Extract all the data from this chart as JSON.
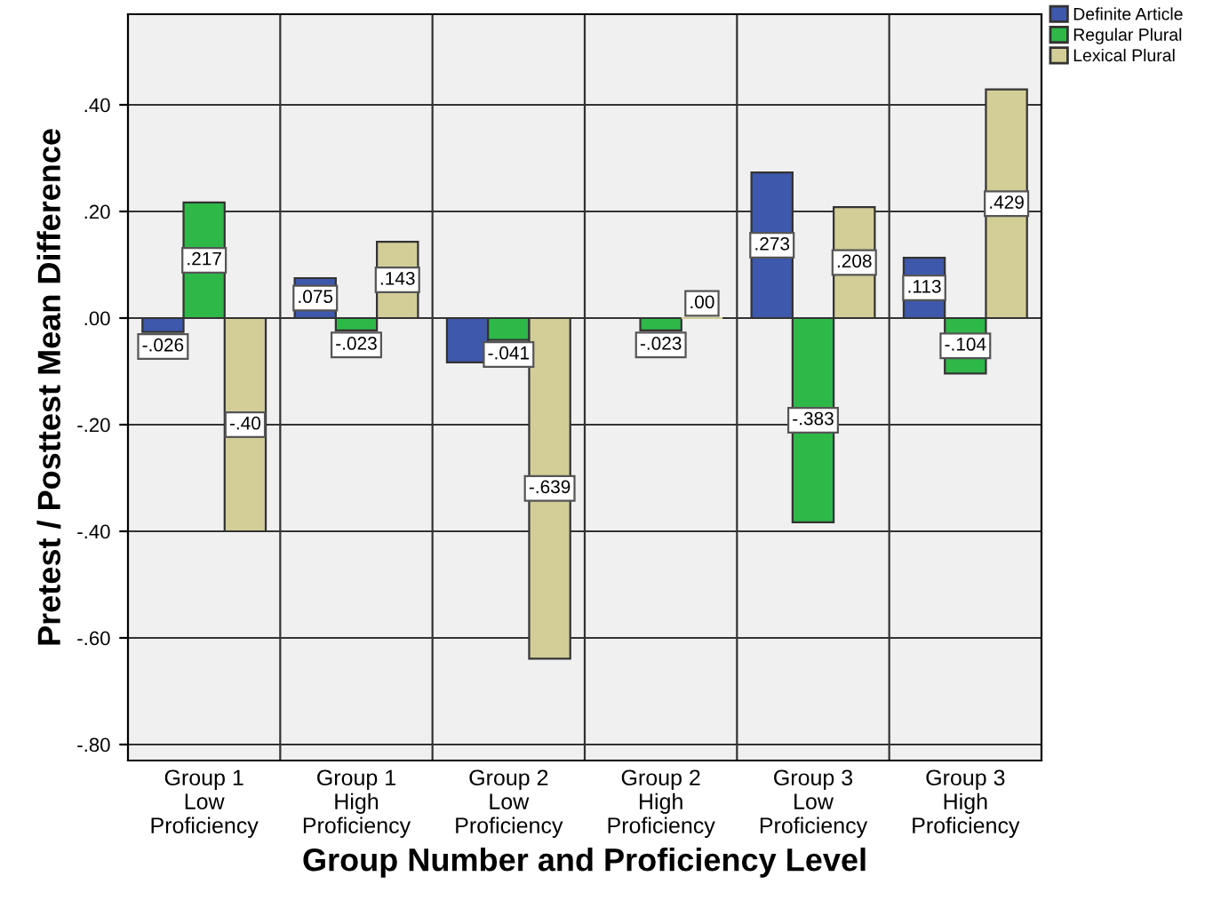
{
  "chart_data": {
    "type": "bar",
    "xlabel": "Group Number and Proficiency Level",
    "ylabel": "Pretest / Posttest Mean Difference",
    "categories": [
      "Group 1\nLow\nProficiency",
      "Group 1\nHigh\nProficiency",
      "Group 2\nLow\nProficiency",
      "Group 2\nHigh\nProficiency",
      "Group 3\nLow\nProficiency",
      "Group 3\nHigh\nProficiency"
    ],
    "series": [
      {
        "name": "Definite Article",
        "color": "#3e58ac",
        "values": [
          -0.026,
          0.075,
          -0.083,
          null,
          0.273,
          0.113
        ],
        "value_labels": [
          "-.026",
          ".075",
          null,
          null,
          ".273",
          ".113"
        ]
      },
      {
        "name": "Regular Plural",
        "color": "#2eb848",
        "values": [
          0.217,
          -0.023,
          -0.041,
          -0.023,
          -0.383,
          -0.104
        ],
        "value_labels": [
          ".217",
          "-.023",
          "-.041",
          "-.023",
          "-.383",
          "-.104"
        ]
      },
      {
        "name": "Lexical Plural",
        "color": "#d3ce97",
        "values": [
          -0.4,
          0.143,
          -0.639,
          0.0,
          0.208,
          0.429
        ],
        "value_labels": [
          "-.40",
          ".143",
          "-.639",
          ".00",
          ".208",
          ".429"
        ]
      }
    ],
    "ylim": [
      -0.83,
      0.57
    ],
    "yticks": [
      {
        "value": -0.8,
        "label": "-.80"
      },
      {
        "value": -0.6,
        "label": "-.60"
      },
      {
        "value": -0.4,
        "label": "-.40"
      },
      {
        "value": -0.2,
        "label": "-.20"
      },
      {
        "value": 0,
        "label": ".00"
      },
      {
        "value": 0.2,
        "label": ".20"
      },
      {
        "value": 0.4,
        "label": ".40"
      }
    ],
    "grid": true,
    "legend": "top right"
  }
}
